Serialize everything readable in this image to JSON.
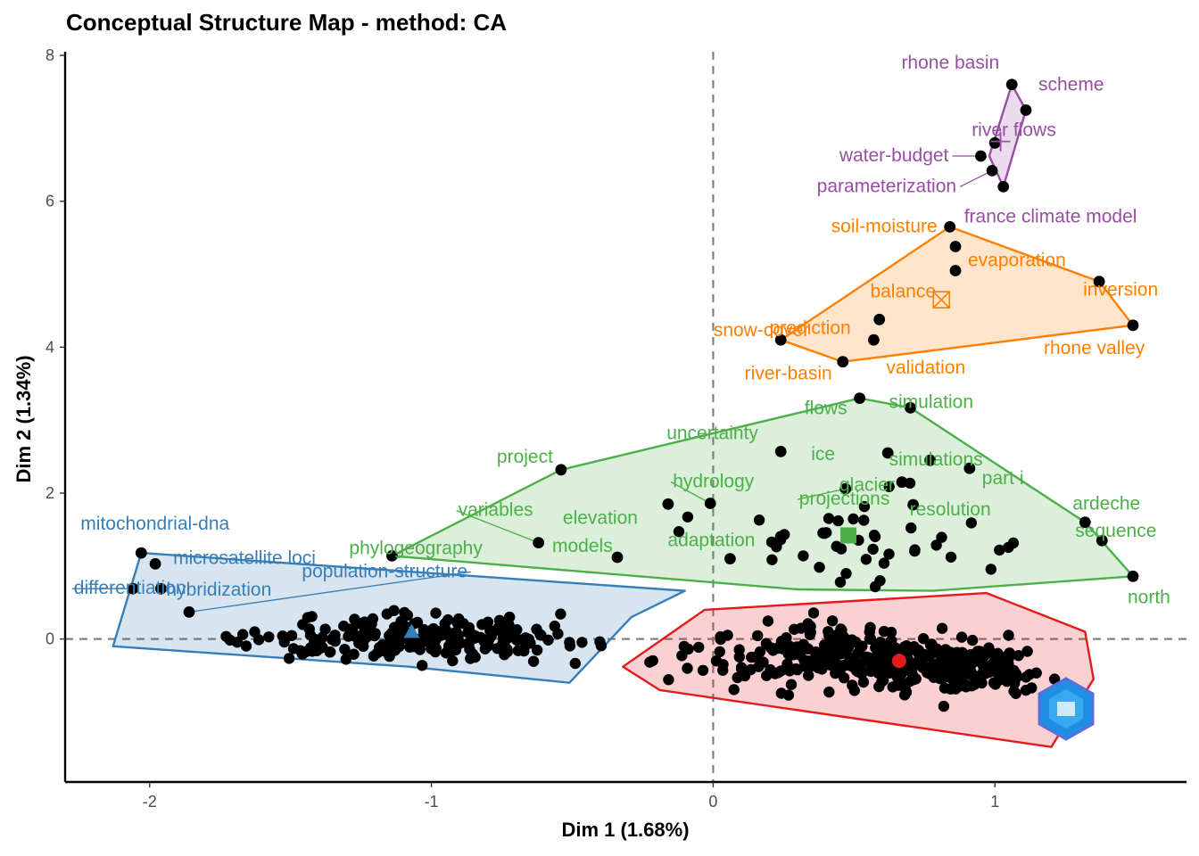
{
  "title": "Conceptual Structure Map - method: CA",
  "colors": {
    "purple": "#984ea3",
    "orange": "#ff7f00",
    "green": "#4daf4a",
    "blue": "#377eb8",
    "red": "#e41a1c",
    "point": "#000000"
  },
  "chart_data": {
    "type": "scatter",
    "title": "Conceptual Structure Map - method: CA",
    "xlabel": "Dim 1 (1.68%)",
    "ylabel": "Dim 2 (1.34%)",
    "xlim": [
      -2.3,
      1.68
    ],
    "ylim": [
      -1.96,
      8.05
    ],
    "xticks": [
      -2,
      -1,
      0,
      1
    ],
    "yticks": [
      0,
      2,
      4,
      6,
      8
    ],
    "reference_lines": {
      "x": 0,
      "y": 0
    },
    "clusters": [
      {
        "color": "purple",
        "centroid_marker": "plus",
        "centroid": [
          1.02,
          6.82
        ],
        "hull": [
          [
            1.06,
            7.6
          ],
          [
            1.11,
            7.25
          ],
          [
            1.03,
            6.2
          ],
          [
            0.98,
            6.62
          ]
        ],
        "words": [
          {
            "label": "rhone basin",
            "x": 1.06,
            "y": 7.6
          },
          {
            "label": "scheme",
            "x": 1.11,
            "y": 7.25
          },
          {
            "label": "river flows",
            "x": 1.0,
            "y": 6.8
          },
          {
            "label": "water-budget",
            "x": 0.95,
            "y": 6.62
          },
          {
            "label": "parameterization",
            "x": 0.99,
            "y": 6.42
          },
          {
            "label": "france climate model",
            "x": 1.03,
            "y": 6.2
          }
        ]
      },
      {
        "color": "orange",
        "centroid_marker": "boxcross",
        "centroid": [
          0.81,
          4.65
        ],
        "hull": [
          [
            0.84,
            5.65
          ],
          [
            1.37,
            4.9
          ],
          [
            1.49,
            4.3
          ],
          [
            0.46,
            3.8
          ],
          [
            0.24,
            4.1
          ]
        ],
        "words": [
          {
            "label": "soil-moisture",
            "x": 0.84,
            "y": 5.65
          },
          {
            "label": "evaporation",
            "x": 0.86,
            "y": 5.38
          },
          {
            "label": "balance",
            "x": 0.86,
            "y": 5.05
          },
          {
            "label": "inversion",
            "x": 1.37,
            "y": 4.9
          },
          {
            "label": "prediction",
            "x": 0.59,
            "y": 4.38
          },
          {
            "label": "snow-cover",
            "x": 0.24,
            "y": 4.1
          },
          {
            "label": "rhone valley",
            "x": 1.49,
            "y": 4.3
          },
          {
            "label": "validation",
            "x": 0.57,
            "y": 4.1
          },
          {
            "label": "river-basin",
            "x": 0.46,
            "y": 3.8
          }
        ]
      },
      {
        "color": "green",
        "centroid_marker": "square",
        "centroid": [
          0.48,
          1.42
        ],
        "hull": [
          [
            0.52,
            3.3
          ],
          [
            0.7,
            3.17
          ],
          [
            1.32,
            1.6
          ],
          [
            1.49,
            0.86
          ],
          [
            0.78,
            0.66
          ],
          [
            0.3,
            0.68
          ],
          [
            -1.14,
            1.14
          ],
          [
            -0.54,
            2.32
          ]
        ],
        "words": [
          {
            "label": "simulation",
            "x": 0.7,
            "y": 3.17
          },
          {
            "label": "flows",
            "x": 0.52,
            "y": 3.3
          },
          {
            "label": "uncertainty",
            "x": 0.24,
            "y": 2.57
          },
          {
            "label": "ice",
            "x": 0.62,
            "y": 2.55
          },
          {
            "label": "simulations",
            "x": 0.77,
            "y": 2.45
          },
          {
            "label": "project",
            "x": -0.54,
            "y": 2.32
          },
          {
            "label": "hydrology",
            "x": -0.01,
            "y": 1.86
          },
          {
            "label": "part i",
            "x": 0.91,
            "y": 2.34
          },
          {
            "label": "glacier",
            "x": 0.67,
            "y": 2.15
          },
          {
            "label": "variables",
            "x": -0.62,
            "y": 1.32
          },
          {
            "label": "elevation",
            "x": -0.16,
            "y": 1.85
          },
          {
            "label": "projections",
            "x": 0.47,
            "y": 2.06
          },
          {
            "label": "resolution",
            "x": 0.71,
            "y": 1.84
          },
          {
            "label": "ardeche",
            "x": 1.32,
            "y": 1.6
          },
          {
            "label": "phylogeography",
            "x": -1.14,
            "y": 1.14
          },
          {
            "label": "models",
            "x": -0.34,
            "y": 1.12
          },
          {
            "label": "adaptation",
            "x": 0.06,
            "y": 1.1
          },
          {
            "label": "sequence",
            "x": 1.38,
            "y": 1.35
          },
          {
            "label": "north",
            "x": 1.49,
            "y": 0.86
          }
        ]
      },
      {
        "color": "blue",
        "centroid_marker": "triangle",
        "centroid": [
          -1.07,
          0.1
        ],
        "hull": [
          [
            -2.03,
            1.18
          ],
          [
            -0.1,
            0.66
          ],
          [
            -0.29,
            0.3
          ],
          [
            -0.51,
            -0.6
          ],
          [
            -1.08,
            -0.38
          ],
          [
            -2.13,
            -0.1
          ]
        ],
        "words": [
          {
            "label": "mitochondrial-dna",
            "x": -2.03,
            "y": 1.18
          },
          {
            "label": "microsatellite loci",
            "x": -1.98,
            "y": 1.03
          },
          {
            "label": "population-structure",
            "x": -1.86,
            "y": 0.37
          },
          {
            "label": "hybridization",
            "x": -1.96,
            "y": 0.69
          },
          {
            "label": "differentiation",
            "x": -2.06,
            "y": 0.69
          }
        ]
      },
      {
        "color": "red",
        "centroid_marker": "circle",
        "centroid": [
          0.66,
          -0.3
        ],
        "hull": [
          [
            -0.03,
            0.4
          ],
          [
            0.97,
            0.63
          ],
          [
            1.32,
            0.1
          ],
          [
            1.35,
            -0.55
          ],
          [
            1.2,
            -1.48
          ],
          [
            -0.19,
            -0.7
          ],
          [
            -0.32,
            -0.38
          ]
        ],
        "words": []
      }
    ]
  }
}
